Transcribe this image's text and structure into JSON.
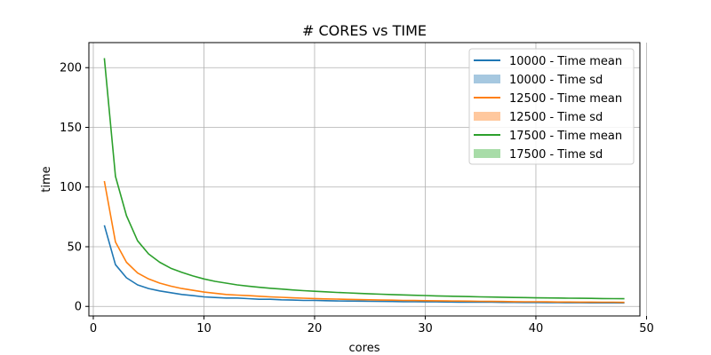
{
  "chart_data": {
    "type": "line",
    "title": "# CORES vs TIME",
    "xlabel": "cores",
    "ylabel": "time",
    "xlim": [
      -0.4,
      49.4
    ],
    "ylim": [
      -8,
      221
    ],
    "xticks": [
      0,
      10,
      20,
      30,
      40,
      50
    ],
    "yticks": [
      0,
      50,
      100,
      150,
      200
    ],
    "grid": true,
    "legend_position": "top-right",
    "x": [
      1,
      2,
      3,
      4,
      5,
      6,
      7,
      8,
      9,
      10,
      11,
      12,
      13,
      14,
      15,
      16,
      17,
      18,
      19,
      20,
      21,
      22,
      23,
      24,
      25,
      26,
      27,
      28,
      29,
      30,
      31,
      32,
      33,
      34,
      35,
      36,
      37,
      38,
      39,
      40,
      41,
      42,
      43,
      44,
      45,
      46,
      47,
      48
    ],
    "series": [
      {
        "name": "10000 - Time mean",
        "sd_name": "10000 - Time sd",
        "color": "#1f77b4",
        "sd_color": "#a6c8e0",
        "values": [
          68,
          35,
          24,
          18,
          15,
          13,
          11.5,
          10,
          9,
          8,
          7.5,
          7,
          7,
          6.5,
          6,
          6,
          5.5,
          5.3,
          5,
          5,
          4.8,
          4.6,
          4.5,
          4.4,
          4.3,
          4.2,
          4.1,
          4,
          3.9,
          3.8,
          3.8,
          3.7,
          3.6,
          3.6,
          3.5,
          3.5,
          3.4,
          3.4,
          3.3,
          3.3,
          3.2,
          3.2,
          3.1,
          3.1,
          3,
          3,
          3,
          2.9
        ]
      },
      {
        "name": "12500 - Time mean",
        "sd_name": "12500 - Time sd",
        "color": "#ff7f0e",
        "sd_color": "#ffc89e",
        "values": [
          105,
          54,
          37,
          28,
          23,
          19.5,
          17,
          15,
          13.5,
          12,
          11,
          10,
          9.5,
          9,
          8.5,
          8,
          7.6,
          7.2,
          6.9,
          6.6,
          6.3,
          6.1,
          5.9,
          5.7,
          5.5,
          5.3,
          5.2,
          5,
          4.9,
          4.8,
          4.7,
          4.6,
          4.5,
          4.4,
          4.3,
          4.2,
          4.1,
          4,
          3.9,
          3.9,
          3.8,
          3.7,
          3.7,
          3.6,
          3.6,
          3.5,
          3.5,
          3.4
        ]
      },
      {
        "name": "17500 - Time mean",
        "sd_name": "17500 - Time sd",
        "color": "#2ca02c",
        "sd_color": "#a8dca8",
        "values": [
          208,
          109,
          76,
          55,
          44,
          37,
          32,
          28.5,
          25.5,
          23,
          21,
          19.5,
          18,
          17,
          16,
          15.2,
          14.5,
          13.8,
          13.2,
          12.7,
          12.2,
          11.7,
          11.3,
          10.9,
          10.5,
          10.2,
          9.9,
          9.6,
          9.3,
          9.1,
          8.8,
          8.6,
          8.4,
          8.2,
          8,
          7.8,
          7.7,
          7.5,
          7.4,
          7.2,
          7.1,
          7,
          6.9,
          6.8,
          6.7,
          6.6,
          6.5,
          6.4
        ]
      }
    ]
  }
}
